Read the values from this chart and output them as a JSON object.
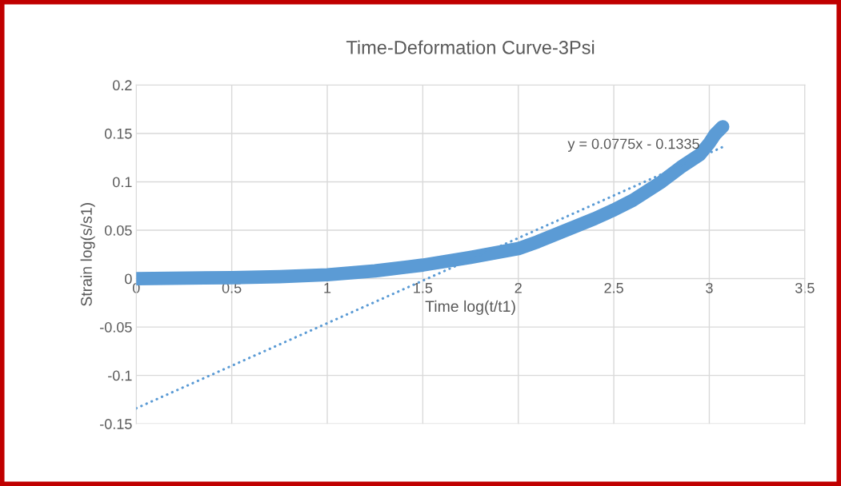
{
  "chart_data": {
    "type": "line",
    "title": "Time-Deformation Curve-3Psi",
    "xlabel": "Time log(t/t1)",
    "ylabel": "Strain log(s/s1)",
    "xlim": [
      0,
      3.5
    ],
    "xticks": [
      0,
      0.5,
      1,
      1.5,
      2,
      2.5,
      3,
      3.5
    ],
    "ylim": [
      -0.15,
      0.2
    ],
    "yticks": [
      -0.15,
      -0.1,
      -0.05,
      0,
      0.05,
      0.1,
      0.15,
      0.2
    ],
    "grid": true,
    "legend": false,
    "series": [
      {
        "color": "#5b9bd5",
        "line_style": "solid",
        "x": [
          0,
          0.5,
          0.75,
          1,
          1.25,
          1.5,
          1.75,
          2,
          2.1,
          2.25,
          2.4,
          2.5,
          2.6,
          2.75,
          2.85,
          2.95,
          3,
          3.03,
          3.07
        ],
        "values": [
          0,
          0.001,
          0.002,
          0.004,
          0.008,
          0.014,
          0.022,
          0.031,
          0.038,
          0.05,
          0.062,
          0.071,
          0.081,
          0.1,
          0.115,
          0.128,
          0.14,
          0.149,
          0.157
        ]
      },
      {
        "color": "#5b9bd5",
        "line_style": "dotted",
        "x": [
          0,
          3.07
        ],
        "values": [
          -0.134,
          0.136
        ]
      }
    ],
    "annotations": [
      {
        "text": "y = 0.0775x - 0.1335",
        "x": 2.95,
        "y": 0.138
      }
    ]
  }
}
